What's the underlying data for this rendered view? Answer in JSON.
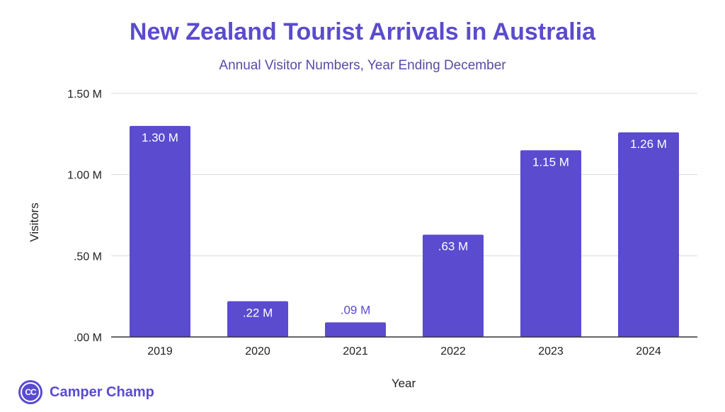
{
  "header": {
    "title": "New Zealand Tourist Arrivals in Australia",
    "subtitle": "Annual Visitor Numbers, Year Ending December"
  },
  "brand": {
    "logo_text": "CC",
    "name": "Camper Champ"
  },
  "colors": {
    "accent": "#5a4bcf",
    "subtitle": "#5a4aa8",
    "grid": "#d9d9d9",
    "axis": "#333333",
    "text": "#222222",
    "label_outside": "#5a4bcf"
  },
  "chart_data": {
    "type": "bar",
    "categories": [
      "2019",
      "2020",
      "2021",
      "2022",
      "2023",
      "2024"
    ],
    "values": [
      1.3,
      0.22,
      0.09,
      0.63,
      1.15,
      1.26
    ],
    "value_labels": [
      "1.30 M",
      ".22 M",
      ".09 M",
      ".63 M",
      "1.15 M",
      "1.26 M"
    ],
    "xlabel": "Year",
    "ylabel": "Visitors",
    "ylim": [
      0,
      1.5
    ],
    "yticks": [
      0,
      0.5,
      1.0,
      1.5
    ],
    "ytick_labels": [
      ".00 M",
      ".50 M",
      "1.00 M",
      "1.50 M"
    ],
    "grid": true,
    "legend": "none"
  }
}
